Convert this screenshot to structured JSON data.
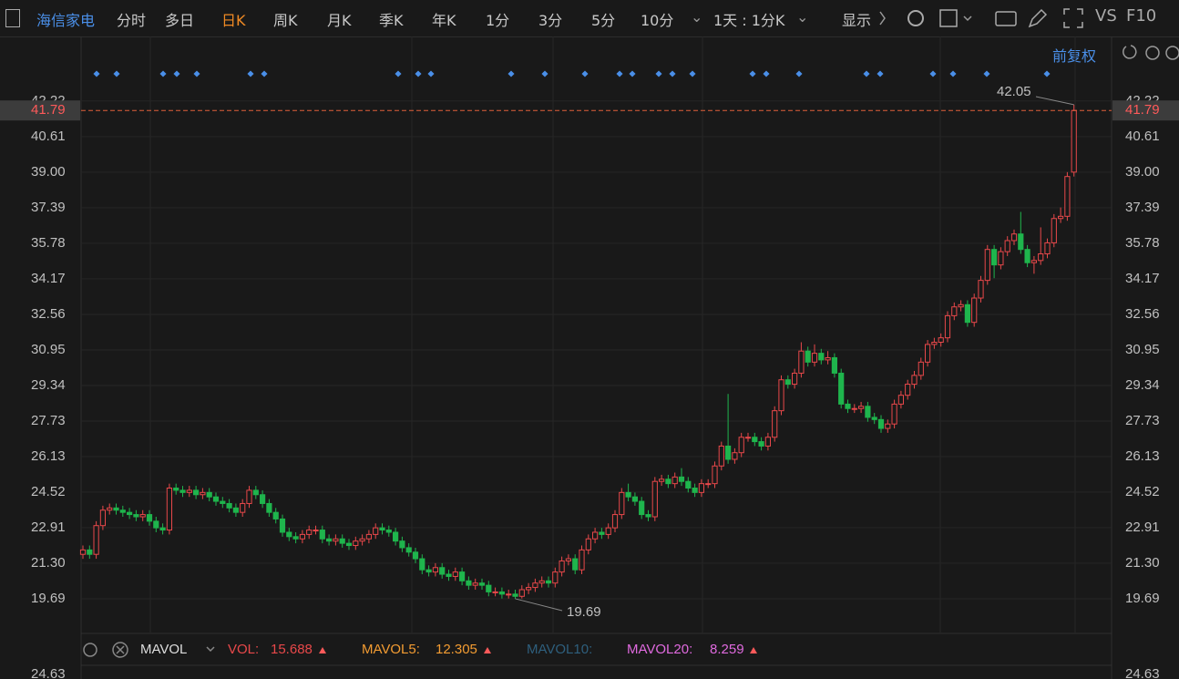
{
  "toolbar": {
    "stock": "海信家电",
    "tabs": [
      "分时",
      "多日",
      "日K",
      "周K",
      "月K",
      "季K",
      "年K",
      "1分",
      "3分",
      "5分",
      "10分"
    ],
    "period": "1天 : 1分K",
    "display": "显示",
    "vs": "VS",
    "f10": "F10",
    "adjust": "前复权"
  },
  "chart_data": {
    "type": "candlestick",
    "ylim": [
      18.12,
      45.14
    ],
    "yticks": [
      {
        "value": 42.22,
        "label": "42.22"
      },
      40.61,
      {
        "value": 39,
        "label": "39.00"
      },
      37.39,
      35.78,
      34.17,
      32.56,
      30.95,
      29.34,
      27.73,
      26.13,
      24.52,
      22.91,
      {
        "value": 21.3,
        "label": "21.30"
      },
      19.69
    ],
    "up_color": "#e8484a",
    "down_color": "#1fb54d",
    "grid": true,
    "ohlc": [
      [
        21.7,
        22.1,
        21.5,
        21.9
      ],
      [
        21.9,
        22.1,
        21.5,
        21.7
      ],
      [
        21.7,
        23.2,
        21.5,
        23.0
      ],
      [
        23.0,
        23.9,
        22.8,
        23.7
      ],
      [
        23.7,
        24.0,
        23.5,
        23.8
      ],
      [
        23.8,
        24.0,
        23.5,
        23.7
      ],
      [
        23.7,
        23.9,
        23.4,
        23.6
      ],
      [
        23.6,
        23.8,
        23.3,
        23.5
      ],
      [
        23.5,
        23.7,
        23.2,
        23.4
      ],
      [
        23.4,
        23.7,
        23.2,
        23.5
      ],
      [
        23.5,
        23.7,
        23.0,
        23.2
      ],
      [
        23.2,
        23.4,
        22.7,
        22.9
      ],
      [
        22.9,
        23.1,
        22.6,
        22.8
      ],
      [
        22.8,
        24.9,
        22.6,
        24.7
      ],
      [
        24.7,
        24.9,
        24.4,
        24.6
      ],
      [
        24.6,
        24.8,
        24.3,
        24.5
      ],
      [
        24.5,
        24.8,
        24.3,
        24.6
      ],
      [
        24.6,
        24.8,
        24.2,
        24.4
      ],
      [
        24.4,
        24.7,
        24.2,
        24.5
      ],
      [
        24.5,
        24.7,
        24.1,
        24.3
      ],
      [
        24.3,
        24.5,
        23.9,
        24.1
      ],
      [
        24.1,
        24.3,
        23.8,
        24.0
      ],
      [
        24.0,
        24.2,
        23.6,
        23.8
      ],
      [
        23.8,
        24.0,
        23.4,
        23.6
      ],
      [
        23.6,
        24.2,
        23.4,
        24.0
      ],
      [
        24.0,
        24.8,
        23.8,
        24.6
      ],
      [
        24.6,
        24.8,
        24.2,
        24.4
      ],
      [
        24.4,
        24.6,
        23.8,
        24.0
      ],
      [
        24.0,
        24.2,
        23.4,
        23.6
      ],
      [
        23.6,
        23.8,
        23.1,
        23.3
      ],
      [
        23.3,
        23.5,
        22.5,
        22.7
      ],
      [
        22.7,
        22.9,
        22.3,
        22.5
      ],
      [
        22.5,
        22.7,
        22.2,
        22.4
      ],
      [
        22.4,
        22.8,
        22.2,
        22.6
      ],
      [
        22.6,
        23.0,
        22.4,
        22.8
      ],
      [
        22.8,
        23.0,
        22.6,
        22.8
      ],
      [
        22.8,
        23.0,
        22.2,
        22.4
      ],
      [
        22.4,
        22.6,
        22.1,
        22.3
      ],
      [
        22.3,
        22.6,
        22.1,
        22.4
      ],
      [
        22.4,
        22.6,
        22.0,
        22.2
      ],
      [
        22.2,
        22.4,
        21.9,
        22.1
      ],
      [
        22.1,
        22.5,
        21.9,
        22.3
      ],
      [
        22.3,
        22.6,
        22.1,
        22.4
      ],
      [
        22.4,
        22.8,
        22.2,
        22.6
      ],
      [
        22.6,
        23.1,
        22.4,
        22.9
      ],
      [
        22.9,
        23.1,
        22.6,
        22.8
      ],
      [
        22.8,
        23.0,
        22.5,
        22.7
      ],
      [
        22.7,
        22.9,
        22.1,
        22.3
      ],
      [
        22.3,
        22.5,
        21.8,
        22.0
      ],
      [
        22.0,
        22.2,
        21.6,
        21.8
      ],
      [
        21.8,
        22.0,
        21.3,
        21.5
      ],
      [
        21.5,
        21.7,
        20.8,
        21.0
      ],
      [
        21.0,
        21.2,
        20.7,
        20.9
      ],
      [
        20.9,
        21.3,
        20.7,
        21.1
      ],
      [
        21.1,
        21.3,
        20.6,
        20.8
      ],
      [
        20.8,
        21.0,
        20.5,
        20.7
      ],
      [
        20.7,
        21.1,
        20.5,
        20.9
      ],
      [
        20.9,
        21.1,
        20.3,
        20.5
      ],
      [
        20.5,
        20.7,
        20.1,
        20.3
      ],
      [
        20.3,
        20.6,
        20.1,
        20.4
      ],
      [
        20.4,
        20.6,
        20.1,
        20.3
      ],
      [
        20.3,
        20.5,
        19.8,
        20.0
      ],
      [
        20.0,
        20.2,
        19.8,
        20.0
      ],
      [
        20.0,
        20.2,
        19.7,
        19.9
      ],
      [
        19.9,
        20.1,
        19.7,
        19.9
      ],
      [
        19.9,
        20.1,
        19.69,
        19.8
      ],
      [
        19.8,
        20.3,
        19.7,
        20.1
      ],
      [
        20.1,
        20.4,
        19.9,
        20.2
      ],
      [
        20.2,
        20.6,
        20.0,
        20.4
      ],
      [
        20.4,
        20.7,
        20.2,
        20.5
      ],
      [
        20.5,
        20.7,
        20.2,
        20.4
      ],
      [
        20.4,
        21.1,
        20.2,
        20.9
      ],
      [
        20.9,
        21.6,
        20.7,
        21.4
      ],
      [
        21.4,
        21.7,
        21.2,
        21.5
      ],
      [
        21.5,
        21.7,
        20.8,
        21.0
      ],
      [
        21.0,
        22.1,
        20.8,
        21.9
      ],
      [
        21.9,
        22.6,
        21.7,
        22.4
      ],
      [
        22.4,
        22.9,
        22.2,
        22.7
      ],
      [
        22.7,
        22.9,
        22.4,
        22.6
      ],
      [
        22.6,
        23.1,
        22.4,
        22.9
      ],
      [
        22.9,
        23.7,
        22.7,
        23.5
      ],
      [
        23.5,
        24.7,
        23.3,
        24.5
      ],
      [
        24.5,
        24.9,
        24.1,
        24.3
      ],
      [
        24.3,
        24.5,
        23.9,
        24.1
      ],
      [
        24.1,
        24.3,
        23.3,
        23.5
      ],
      [
        23.5,
        23.7,
        23.2,
        23.4
      ],
      [
        23.4,
        25.2,
        23.2,
        25.0
      ],
      [
        25.0,
        25.3,
        24.8,
        25.1
      ],
      [
        25.1,
        25.3,
        24.7,
        24.9
      ],
      [
        24.9,
        25.4,
        24.7,
        25.2
      ],
      [
        25.2,
        25.6,
        24.8,
        25.0
      ],
      [
        25.0,
        25.2,
        24.5,
        24.7
      ],
      [
        24.7,
        24.9,
        24.3,
        24.5
      ],
      [
        24.5,
        25.1,
        24.3,
        24.9
      ],
      [
        24.9,
        25.1,
        24.7,
        24.9
      ],
      [
        24.9,
        25.9,
        24.7,
        25.7
      ],
      [
        25.7,
        26.8,
        25.5,
        26.6
      ],
      [
        26.6,
        28.96,
        25.8,
        26.0
      ],
      [
        26.0,
        26.5,
        25.8,
        26.3
      ],
      [
        26.3,
        27.2,
        26.1,
        27.0
      ],
      [
        27.0,
        27.2,
        26.8,
        27.0
      ],
      [
        27.0,
        27.2,
        26.6,
        26.8
      ],
      [
        26.8,
        27.0,
        26.4,
        26.6
      ],
      [
        26.6,
        27.2,
        26.4,
        27.0
      ],
      [
        27.0,
        28.4,
        26.8,
        28.2
      ],
      [
        28.2,
        29.8,
        28.0,
        29.6
      ],
      [
        29.6,
        29.8,
        29.2,
        29.4
      ],
      [
        29.4,
        30.1,
        29.2,
        29.9
      ],
      [
        29.9,
        31.3,
        29.7,
        30.9
      ],
      [
        30.9,
        31.1,
        30.2,
        30.4
      ],
      [
        30.4,
        31.2,
        30.2,
        30.8
      ],
      [
        30.8,
        31.0,
        30.3,
        30.5
      ],
      [
        30.5,
        30.9,
        30.3,
        30.6
      ],
      [
        30.6,
        30.8,
        29.7,
        29.9
      ],
      [
        29.9,
        30.1,
        28.3,
        28.5
      ],
      [
        28.5,
        28.7,
        28.1,
        28.3
      ],
      [
        28.3,
        28.5,
        28.1,
        28.3
      ],
      [
        28.3,
        28.6,
        28.1,
        28.4
      ],
      [
        28.4,
        28.6,
        27.7,
        27.9
      ],
      [
        27.9,
        28.1,
        27.6,
        27.8
      ],
      [
        27.8,
        28.0,
        27.2,
        27.4
      ],
      [
        27.4,
        27.8,
        27.2,
        27.6
      ],
      [
        27.6,
        28.7,
        27.4,
        28.5
      ],
      [
        28.5,
        29.1,
        28.3,
        28.9
      ],
      [
        28.9,
        29.6,
        28.7,
        29.4
      ],
      [
        29.4,
        30.0,
        29.2,
        29.8
      ],
      [
        29.8,
        30.6,
        29.6,
        30.4
      ],
      [
        30.4,
        31.4,
        30.2,
        31.2
      ],
      [
        31.2,
        31.5,
        31.0,
        31.3
      ],
      [
        31.3,
        31.7,
        31.1,
        31.5
      ],
      [
        31.5,
        32.7,
        31.3,
        32.5
      ],
      [
        32.5,
        33.1,
        32.3,
        32.9
      ],
      [
        32.9,
        33.2,
        32.7,
        33.0
      ],
      [
        33.0,
        33.2,
        32.0,
        32.2
      ],
      [
        32.2,
        33.5,
        32.0,
        33.3
      ],
      [
        33.3,
        34.3,
        33.1,
        34.1
      ],
      [
        34.1,
        35.7,
        33.9,
        35.5
      ],
      [
        35.5,
        35.7,
        34.2,
        34.8
      ],
      [
        34.8,
        35.6,
        34.6,
        35.4
      ],
      [
        35.4,
        36.1,
        35.2,
        35.9
      ],
      [
        35.9,
        36.4,
        35.7,
        36.2
      ],
      [
        36.2,
        37.2,
        35.3,
        35.5
      ],
      [
        35.5,
        35.7,
        34.7,
        34.9
      ],
      [
        34.9,
        35.2,
        34.4,
        35.0
      ],
      [
        35.0,
        36.5,
        34.8,
        35.3
      ],
      [
        35.3,
        36.0,
        35.1,
        35.8
      ],
      [
        35.8,
        37.1,
        35.6,
        36.9
      ],
      [
        36.9,
        37.4,
        36.7,
        37.0
      ],
      [
        37.0,
        39.0,
        36.8,
        38.8
      ],
      [
        39.0,
        42.05,
        38.8,
        41.79
      ]
    ]
  },
  "volume_legend": {
    "indicator": "MAVOL",
    "vol_label": "VOL:",
    "vol": 15.688,
    "mavol5_label": "MAVOL5:",
    "mavol5": 12.305,
    "mavol10_label": "MAVOL10:",
    "mavol20_label": "MAVOL20:",
    "mavol20": 8.259,
    "axis_top": 24.63
  }
}
